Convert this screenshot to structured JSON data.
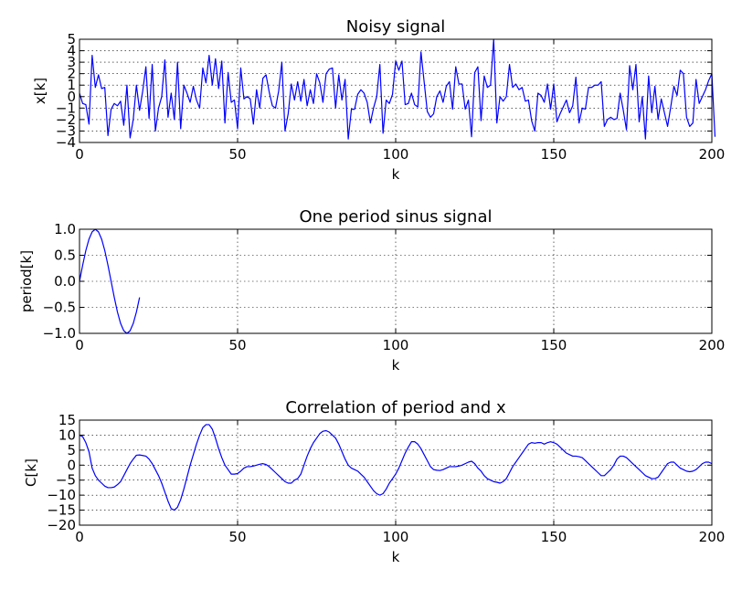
{
  "chart_data": [
    {
      "type": "line",
      "title": "Noisy signal",
      "xlabel": "k",
      "ylabel": "x[k]",
      "xlim": [
        0,
        200
      ],
      "ylim": [
        -4,
        5
      ],
      "xticks": [
        0,
        50,
        100,
        150,
        200
      ],
      "yticks": [
        -4,
        -3,
        -2,
        -1,
        0,
        1,
        2,
        3,
        4,
        5
      ],
      "xtick_labels": [
        "0",
        "50",
        "100",
        "150",
        "200"
      ],
      "ytick_labels": [
        "−4",
        "−3",
        "−2",
        "−1",
        "0",
        "1",
        "2",
        "3",
        "4",
        "5"
      ],
      "grid": true,
      "color": "#0000ff",
      "series": [
        {
          "x_start": 0,
          "x_step": 1,
          "values": [
            0.3,
            -0.6,
            -0.7,
            -2.4,
            3.6,
            0.8,
            1.9,
            0.7,
            0.8,
            -3.4,
            -1.1,
            -0.6,
            -0.8,
            -0.4,
            -2.5,
            1.0,
            -3.6,
            -2.0,
            1.0,
            -1.2,
            0.5,
            2.6,
            -1.9,
            2.8,
            -3.0,
            -1.0,
            0.0,
            3.2,
            -1.8,
            0.3,
            -2.0,
            3.0,
            -2.8,
            1.0,
            0.3,
            -0.5,
            0.9,
            -0.3,
            -1.0,
            2.5,
            1.2,
            3.6,
            1.0,
            3.3,
            0.7,
            3.1,
            -2.3,
            2.1,
            -0.5,
            -0.3,
            -2.8,
            2.5,
            -0.2,
            0.0,
            -0.2,
            -2.4,
            0.6,
            -1.0,
            1.6,
            1.9,
            0.4,
            -0.8,
            -1.0,
            0.5,
            3.0,
            -3.0,
            -1.5,
            1.1,
            -0.3,
            1.3,
            -0.4,
            1.5,
            -0.8,
            0.6,
            -0.6,
            2.0,
            1.2,
            -0.5,
            2.0,
            2.4,
            2.5,
            -1.0,
            1.9,
            -0.3,
            1.5,
            -3.7,
            -1.1,
            -1.1,
            0.2,
            0.6,
            0.3,
            -0.5,
            -2.3,
            -1.0,
            0.0,
            2.8,
            -3.2,
            -0.3,
            -0.6,
            0.2,
            3.1,
            2.3,
            3.1,
            -0.7,
            -0.6,
            0.3,
            -0.7,
            -0.9,
            3.9,
            1.3,
            -1.3,
            -1.8,
            -1.5,
            0.0,
            0.5,
            -0.5,
            0.9,
            1.3,
            -1.1,
            2.6,
            1.1,
            1.1,
            -1.1,
            -0.3,
            -3.5,
            2.1,
            2.6,
            -2.1,
            1.8,
            0.8,
            1.0,
            5.0,
            -2.3,
            0.0,
            -0.4,
            0.0,
            2.8,
            0.8,
            1.1,
            0.6,
            0.8,
            -0.4,
            -0.3,
            -2.1,
            -3.0,
            0.3,
            0.1,
            -0.5,
            1.1,
            -1.1,
            1.1,
            -2.2,
            -1.5,
            -0.9,
            -0.3,
            -1.4,
            -0.8,
            1.7,
            -2.3,
            -1.0,
            -1.1,
            0.8,
            0.8,
            1.0,
            1.0,
            1.3,
            -2.6,
            -2.0,
            -1.8,
            -2.0,
            -1.9,
            0.3,
            -1.2,
            -2.9,
            2.7,
            0.6,
            2.8,
            -2.2,
            0.0,
            -3.7,
            1.8,
            -1.4,
            0.9,
            -2.0,
            -0.2,
            -1.4,
            -2.6,
            -0.9,
            0.9,
            0.1,
            2.3,
            2.0,
            -1.8,
            -2.6,
            -2.3,
            1.5,
            -0.6,
            0.0,
            0.6,
            1.4,
            2.0,
            -3.5
          ]
        }
      ]
    },
    {
      "type": "line",
      "title": "One period sinus signal",
      "xlabel": "k",
      "ylabel": "period[k]",
      "xlim": [
        0,
        200
      ],
      "ylim": [
        -1.0,
        1.0
      ],
      "xticks": [
        0,
        50,
        100,
        150,
        200
      ],
      "yticks": [
        -1.0,
        -0.5,
        0.0,
        0.5,
        1.0
      ],
      "xtick_labels": [
        "0",
        "50",
        "100",
        "150",
        "200"
      ],
      "ytick_labels": [
        "−1.0",
        "−0.5",
        "0.0",
        "0.5",
        "1.0"
      ],
      "grid": true,
      "color": "#0000ff",
      "series": [
        {
          "x_start": 0,
          "x_step": 1,
          "values": [
            0.0,
            0.31,
            0.59,
            0.81,
            0.95,
            1.0,
            0.95,
            0.81,
            0.59,
            0.31,
            0.0,
            -0.31,
            -0.59,
            -0.81,
            -0.95,
            -1.0,
            -0.95,
            -0.81,
            -0.59,
            -0.31
          ]
        }
      ]
    },
    {
      "type": "line",
      "title": "Correlation of period and x",
      "xlabel": "k",
      "ylabel": "C[k]",
      "xlim": [
        0,
        200
      ],
      "ylim": [
        -20,
        15
      ],
      "xticks": [
        0,
        50,
        100,
        150,
        200
      ],
      "yticks": [
        -20,
        -15,
        -10,
        -5,
        0,
        5,
        10,
        15
      ],
      "xtick_labels": [
        "0",
        "50",
        "100",
        "150",
        "200"
      ],
      "ytick_labels": [
        "−20",
        "−15",
        "−10",
        "−5",
        "0",
        "5",
        "10",
        "15"
      ],
      "grid": true,
      "color": "#0000ff",
      "series": [
        {
          "x_start": 0,
          "x_step": 1,
          "values": [
            10.0,
            9.5,
            7.5,
            4.5,
            -1.0,
            -3.5,
            -5.0,
            -6.0,
            -7.0,
            -7.5,
            -7.5,
            -7.3,
            -6.5,
            -5.5,
            -3.5,
            -1.5,
            0.5,
            2.0,
            3.3,
            3.4,
            3.2,
            3.0,
            2.0,
            0.5,
            -1.5,
            -3.5,
            -6.0,
            -9.0,
            -12.0,
            -14.5,
            -15.0,
            -14.0,
            -11.5,
            -8.0,
            -4.0,
            0.0,
            3.5,
            7.0,
            10.0,
            12.5,
            13.5,
            13.5,
            12.0,
            9.0,
            5.5,
            2.5,
            0.0,
            -1.5,
            -3.0,
            -3.0,
            -2.8,
            -2.0,
            -1.0,
            -0.5,
            -0.5,
            -0.3,
            0.0,
            0.3,
            0.5,
            0.2,
            -0.5,
            -1.5,
            -2.5,
            -3.5,
            -4.5,
            -5.5,
            -6.0,
            -6.0,
            -5.0,
            -4.5,
            -3.0,
            0.0,
            3.0,
            5.5,
            7.5,
            9.0,
            10.5,
            11.3,
            11.5,
            11.0,
            10.0,
            9.0,
            7.0,
            4.5,
            2.0,
            0.0,
            -1.0,
            -1.5,
            -2.0,
            -3.0,
            -4.0,
            -5.5,
            -7.0,
            -8.5,
            -9.5,
            -10.0,
            -9.5,
            -8.0,
            -6.0,
            -4.5,
            -3.0,
            -1.0,
            1.5,
            4.0,
            6.0,
            7.8,
            7.8,
            7.0,
            5.5,
            3.5,
            1.5,
            -0.5,
            -1.5,
            -1.7,
            -1.8,
            -1.5,
            -1.0,
            -0.5,
            -0.5,
            -0.5,
            -0.3,
            0.0,
            0.5,
            1.0,
            1.3,
            0.5,
            -1.0,
            -2.0,
            -3.5,
            -4.5,
            -5.0,
            -5.5,
            -5.7,
            -6.0,
            -5.5,
            -4.5,
            -2.5,
            -0.5,
            1.0,
            2.5,
            4.0,
            5.5,
            7.0,
            7.5,
            7.3,
            7.5,
            7.5,
            7.0,
            7.5,
            7.8,
            7.5,
            7.0,
            6.0,
            5.0,
            4.0,
            3.5,
            3.0,
            3.0,
            2.8,
            2.5,
            1.5,
            0.5,
            -0.5,
            -1.5,
            -2.5,
            -3.5,
            -3.5,
            -2.5,
            -1.5,
            0.0,
            2.0,
            3.0,
            3.0,
            2.5,
            1.5,
            0.5,
            -0.5,
            -1.5,
            -2.5,
            -3.5,
            -4.0,
            -4.5,
            -4.5,
            -4.0,
            -2.5,
            -1.0,
            0.5,
            1.0,
            1.0,
            0.0,
            -1.0,
            -1.5,
            -2.0,
            -2.2,
            -2.0,
            -1.5,
            -0.5,
            0.5,
            1.0,
            1.0,
            0.5
          ]
        }
      ]
    }
  ]
}
